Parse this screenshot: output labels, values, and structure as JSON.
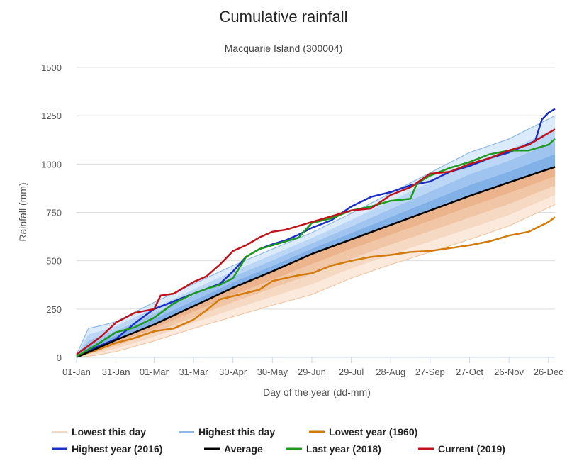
{
  "chart_data": {
    "type": "line",
    "title": "Cumulative rainfall",
    "subtitle": "Macquarie Island (300004)",
    "xlabel": "Day of the year (dd-mm)",
    "ylabel": "Rainfall (mm)",
    "xlim": [
      1,
      365
    ],
    "ylim": [
      0,
      1500
    ],
    "yticks": [
      0,
      250,
      500,
      750,
      1000,
      1250,
      1500
    ],
    "xticks": [
      {
        "day": 1,
        "label": "01-Jan"
      },
      {
        "day": 31,
        "label": "31-Jan"
      },
      {
        "day": 60,
        "label": "01-Mar"
      },
      {
        "day": 90,
        "label": "31-Mar"
      },
      {
        "day": 120,
        "label": "30-Apr"
      },
      {
        "day": 150,
        "label": "30-May"
      },
      {
        "day": 180,
        "label": "29-Jun"
      },
      {
        "day": 210,
        "label": "29-Jul"
      },
      {
        "day": 240,
        "label": "28-Aug"
      },
      {
        "day": 270,
        "label": "27-Sep"
      },
      {
        "day": 300,
        "label": "27-Oct"
      },
      {
        "day": 330,
        "label": "26-Nov"
      },
      {
        "day": 360,
        "label": "26-Dec"
      }
    ],
    "grid": "horizontal",
    "legend_position": "bottom",
    "colors": {
      "lowest_band": "#f6d9c3",
      "highest_band": "#8fb8e6",
      "lowest_year": "#d27a0a",
      "highest_year": "#1a2fc4",
      "average": "#000000",
      "last_year": "#1e9a1e",
      "current": "#c0121b"
    },
    "bands": {
      "lowest_this_day": {
        "x": [
          1,
          15,
          31,
          60,
          90,
          120,
          150,
          180,
          210,
          240,
          270,
          300,
          330,
          365
        ],
        "y": [
          0,
          10,
          30,
          85,
          150,
          210,
          270,
          325,
          410,
          480,
          545,
          610,
          680,
          790
        ]
      },
      "highest_this_day": {
        "x": [
          1,
          10,
          20,
          31,
          60,
          90,
          120,
          150,
          180,
          210,
          240,
          270,
          300,
          330,
          365
        ],
        "y": [
          15,
          150,
          165,
          185,
          285,
          380,
          475,
          560,
          645,
          745,
          850,
          955,
          1060,
          1130,
          1250
        ]
      }
    },
    "series": [
      {
        "name": "Lowest year (1960)",
        "x": [
          1,
          15,
          31,
          45,
          60,
          75,
          90,
          100,
          110,
          125,
          140,
          150,
          160,
          170,
          180,
          195,
          210,
          225,
          240,
          255,
          270,
          285,
          300,
          315,
          330,
          345,
          360,
          365
        ],
        "y": [
          5,
          35,
          75,
          100,
          135,
          150,
          195,
          245,
          300,
          325,
          350,
          395,
          410,
          425,
          435,
          475,
          500,
          520,
          530,
          545,
          550,
          565,
          580,
          600,
          630,
          650,
          700,
          725
        ]
      },
      {
        "name": "Highest year (2016)",
        "x": [
          1,
          15,
          31,
          45,
          60,
          75,
          90,
          100,
          110,
          120,
          130,
          140,
          150,
          160,
          170,
          180,
          195,
          210,
          225,
          240,
          255,
          270,
          285,
          300,
          315,
          330,
          340,
          350,
          355,
          360,
          365
        ],
        "y": [
          5,
          50,
          95,
          175,
          250,
          290,
          330,
          355,
          380,
          445,
          520,
          560,
          585,
          605,
          635,
          670,
          710,
          780,
          830,
          855,
          890,
          910,
          960,
          990,
          1030,
          1060,
          1090,
          1120,
          1230,
          1265,
          1285
        ]
      },
      {
        "name": "Average",
        "x": [
          1,
          31,
          60,
          90,
          120,
          150,
          180,
          210,
          240,
          270,
          300,
          330,
          365
        ],
        "y": [
          0,
          90,
          170,
          265,
          360,
          445,
          535,
          610,
          685,
          760,
          835,
          905,
          985
        ]
      },
      {
        "name": "Last year (2018)",
        "x": [
          1,
          15,
          31,
          45,
          60,
          75,
          90,
          100,
          110,
          120,
          130,
          140,
          150,
          160,
          170,
          180,
          195,
          210,
          225,
          240,
          255,
          260,
          270,
          285,
          300,
          315,
          330,
          345,
          360,
          365
        ],
        "y": [
          5,
          60,
          130,
          155,
          205,
          280,
          330,
          355,
          375,
          410,
          520,
          560,
          580,
          600,
          620,
          695,
          720,
          760,
          780,
          810,
          820,
          900,
          940,
          980,
          1010,
          1050,
          1070,
          1070,
          1100,
          1130
        ]
      },
      {
        "name": "Current (2019)",
        "x": [
          1,
          10,
          20,
          31,
          45,
          60,
          65,
          75,
          90,
          100,
          110,
          120,
          130,
          140,
          150,
          160,
          170,
          180,
          195,
          210,
          225,
          240,
          255,
          270,
          285,
          300,
          315,
          330,
          345,
          360,
          365
        ],
        "y": [
          15,
          60,
          110,
          180,
          230,
          250,
          320,
          330,
          390,
          420,
          480,
          550,
          580,
          620,
          650,
          660,
          680,
          700,
          730,
          760,
          770,
          840,
          880,
          950,
          960,
          1000,
          1030,
          1070,
          1100,
          1160,
          1180
        ]
      }
    ],
    "legend": {
      "items": [
        {
          "label": "Lowest this day",
          "color": "#f6d9c3",
          "kind": "band"
        },
        {
          "label": "Highest this day",
          "color": "#8fb8e6",
          "kind": "band"
        },
        {
          "label": "Lowest year (1960)",
          "color": "#d27a0a",
          "kind": "line"
        },
        {
          "label": "Highest year (2016)",
          "color": "#1a2fc4",
          "kind": "line"
        },
        {
          "label": "Average",
          "color": "#000000",
          "kind": "line"
        },
        {
          "label": "Last year (2018)",
          "color": "#1e9a1e",
          "kind": "line"
        },
        {
          "label": "Current (2019)",
          "color": "#c0121b",
          "kind": "line"
        }
      ]
    }
  }
}
